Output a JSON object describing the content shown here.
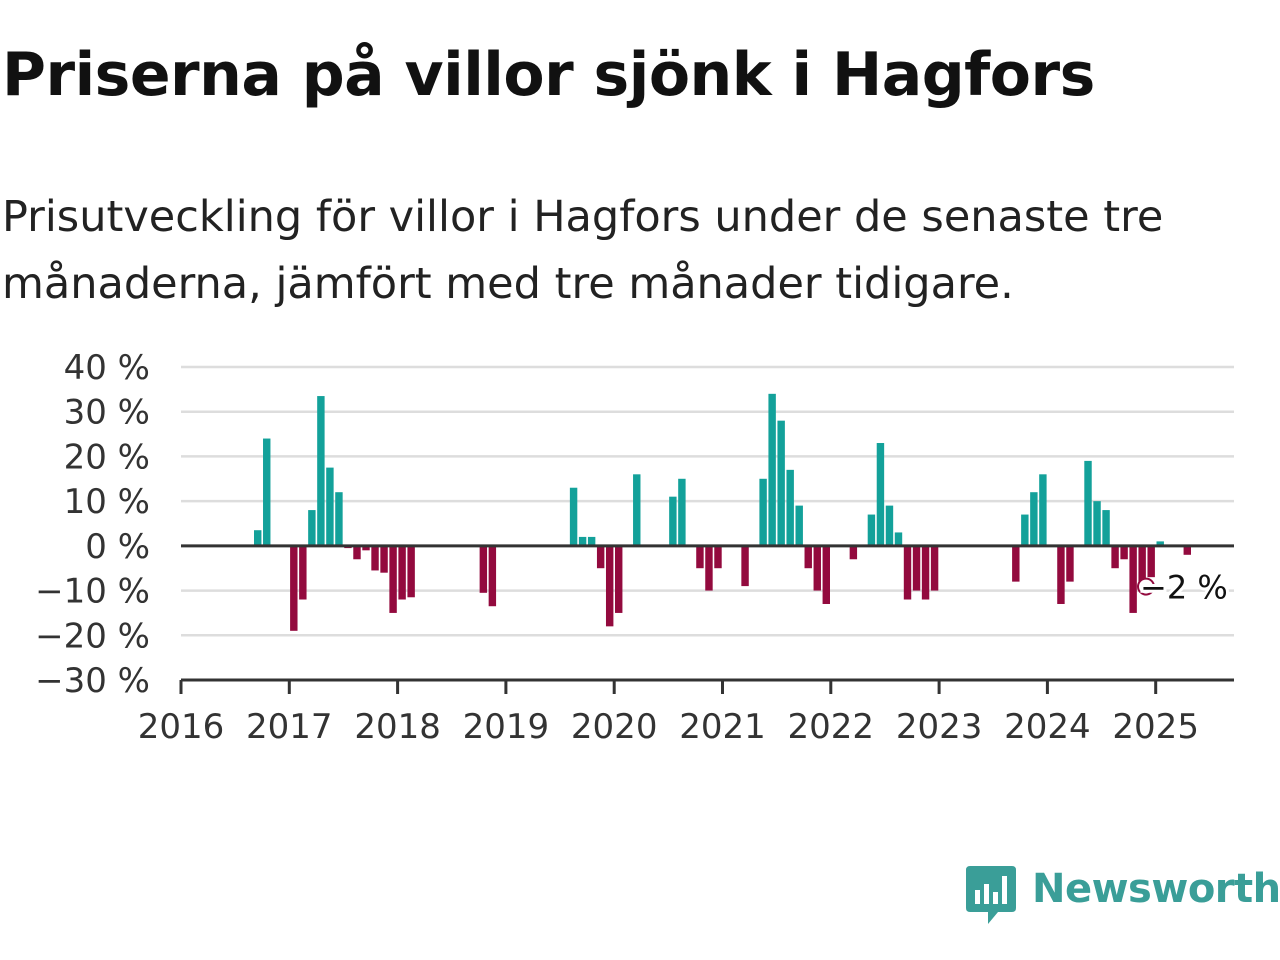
{
  "title": "Priserna på villor sjönk i Hagfors",
  "subtitle": "Prisutveckling för villor i Hagfors under de senaste tre månaderna, jämfört med tre månader tidigare.",
  "brand": {
    "name": "Newsworthy",
    "color": "#3a9e98",
    "icon": "newsworthy-logo-icon"
  },
  "colors": {
    "positive": "#13a19a",
    "negative": "#930a3e",
    "grid": "#dddddd",
    "axis": "#333333"
  },
  "chart_data": {
    "type": "bar",
    "y_unit": "%",
    "ylim": [
      -30,
      40
    ],
    "y_ticks": [
      -30,
      -20,
      -10,
      0,
      10,
      20,
      30,
      40
    ],
    "y_tick_labels": [
      "−30 %",
      "−20 %",
      "−10 %",
      "0 %",
      "10 %",
      "20 %",
      "30 %",
      "40 %"
    ],
    "x_range": [
      "2016-01",
      "2025-09"
    ],
    "x_ticks": [
      "2016",
      "2017",
      "2018",
      "2019",
      "2020",
      "2021",
      "2022",
      "2023",
      "2024",
      "2025"
    ],
    "grid": true,
    "end_label": "−2 %",
    "points": [
      {
        "date": "2016-09",
        "value": 3.5
      },
      {
        "date": "2016-10",
        "value": 24
      },
      {
        "date": "2017-01",
        "value": -19
      },
      {
        "date": "2017-02",
        "value": -12
      },
      {
        "date": "2017-03",
        "value": 8
      },
      {
        "date": "2017-04",
        "value": 33.5
      },
      {
        "date": "2017-05",
        "value": 17.5
      },
      {
        "date": "2017-06",
        "value": 12
      },
      {
        "date": "2017-07",
        "value": -0.5
      },
      {
        "date": "2017-08",
        "value": -3
      },
      {
        "date": "2017-09",
        "value": -1
      },
      {
        "date": "2017-10",
        "value": -5.5
      },
      {
        "date": "2017-11",
        "value": -6
      },
      {
        "date": "2017-12",
        "value": -15
      },
      {
        "date": "2018-01",
        "value": -12
      },
      {
        "date": "2018-02",
        "value": -11.5
      },
      {
        "date": "2018-10",
        "value": -10.5
      },
      {
        "date": "2018-11",
        "value": -13.5
      },
      {
        "date": "2019-08",
        "value": 13
      },
      {
        "date": "2019-09",
        "value": 2
      },
      {
        "date": "2019-10",
        "value": 2
      },
      {
        "date": "2019-11",
        "value": -5
      },
      {
        "date": "2019-12",
        "value": -18
      },
      {
        "date": "2020-01",
        "value": -15
      },
      {
        "date": "2020-03",
        "value": 16
      },
      {
        "date": "2020-07",
        "value": 11
      },
      {
        "date": "2020-08",
        "value": 15
      },
      {
        "date": "2020-10",
        "value": -5
      },
      {
        "date": "2020-11",
        "value": -10
      },
      {
        "date": "2020-12",
        "value": -5
      },
      {
        "date": "2021-03",
        "value": -9
      },
      {
        "date": "2021-05",
        "value": 15
      },
      {
        "date": "2021-06",
        "value": 34
      },
      {
        "date": "2021-07",
        "value": 28
      },
      {
        "date": "2021-08",
        "value": 17
      },
      {
        "date": "2021-09",
        "value": 9
      },
      {
        "date": "2021-10",
        "value": -5
      },
      {
        "date": "2021-11",
        "value": -10
      },
      {
        "date": "2021-12",
        "value": -13
      },
      {
        "date": "2022-03",
        "value": -3
      },
      {
        "date": "2022-05",
        "value": 7
      },
      {
        "date": "2022-06",
        "value": 23
      },
      {
        "date": "2022-07",
        "value": 9
      },
      {
        "date": "2022-08",
        "value": 3
      },
      {
        "date": "2022-09",
        "value": -12
      },
      {
        "date": "2022-10",
        "value": -10
      },
      {
        "date": "2022-11",
        "value": -12
      },
      {
        "date": "2022-12",
        "value": -10
      },
      {
        "date": "2023-09",
        "value": -8
      },
      {
        "date": "2023-10",
        "value": 7
      },
      {
        "date": "2023-11",
        "value": 12
      },
      {
        "date": "2023-12",
        "value": 16
      },
      {
        "date": "2024-02",
        "value": -13
      },
      {
        "date": "2024-03",
        "value": -8
      },
      {
        "date": "2024-05",
        "value": 19
      },
      {
        "date": "2024-06",
        "value": 10
      },
      {
        "date": "2024-07",
        "value": 8
      },
      {
        "date": "2024-08",
        "value": -5
      },
      {
        "date": "2024-09",
        "value": -3
      },
      {
        "date": "2024-10",
        "value": -15
      },
      {
        "date": "2024-11",
        "value": -10
      },
      {
        "date": "2024-12",
        "value": -7
      },
      {
        "date": "2025-01",
        "value": 1
      },
      {
        "date": "2025-04",
        "value": -2
      }
    ]
  }
}
